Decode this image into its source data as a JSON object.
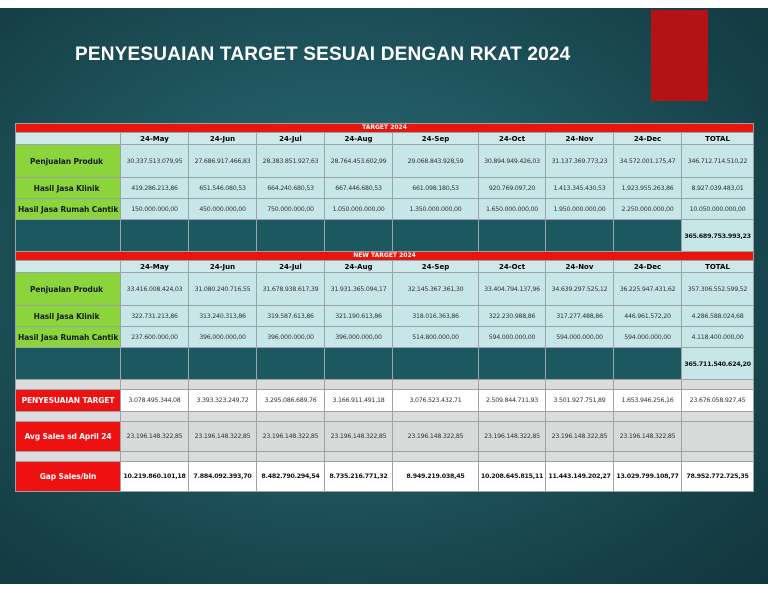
{
  "slide": {
    "title": "PENYESUAIAN TARGET SESUAI DENGAN RKAT 2024",
    "accent_color": "#b31315",
    "background_color": "#1f555e"
  },
  "table": {
    "columns": [
      "24-May",
      "24-Jun",
      "24-Jul",
      "24-Aug",
      "24-Sep",
      "24-Oct",
      "24-Nov",
      "24-Dec",
      "TOTAL"
    ],
    "target": {
      "banner": "TARGET 2024",
      "rows": [
        {
          "label": "Penjualan Produk",
          "values": [
            "30.337.513.079,95",
            "27.686.917.466,83",
            "28.383.851.927,63",
            "28.764.453.602,99",
            "29.068.843.928,59",
            "30.894.949.426,03",
            "31.137.369.773,23",
            "34.572.001.175,47",
            "346.712.714.510,22"
          ]
        },
        {
          "label": "Hasil Jasa Klinik",
          "values": [
            "419.286.213,86",
            "651.546.080,53",
            "664.240.680,53",
            "667.446.680,53",
            "661.098.180,53",
            "920.769.097,20",
            "1.413.345.430,53",
            "1.923.955.263,86",
            "8.927.039.483,01"
          ]
        },
        {
          "label": "Hasil Jasa Rumah Cantik",
          "values": [
            "150.000.000,00",
            "450.000.000,00",
            "750.000.000,00",
            "1.050.000.000,00",
            "1.350.000.000,00",
            "1.650.000.000,00",
            "1.950.000.000,00",
            "2.250.000.000,00",
            "10.050.000.000,00"
          ]
        }
      ],
      "grand_total": "365.689.753.993,23"
    },
    "new_target": {
      "banner": "NEW TARGET 2024",
      "rows": [
        {
          "label": "Penjualan Produk",
          "values": [
            "33.416.008.424,03",
            "31.080.240.716,55",
            "31.678.938.617,39",
            "31.931.365.094,17",
            "32.145.367.361,30",
            "33.404.794.137,96",
            "34.639.297.525,12",
            "36.225.947.431,62",
            "357.306.552.599,52"
          ]
        },
        {
          "label": "Hasil Jasa Klinik",
          "values": [
            "322.731.213,86",
            "313.240.313,86",
            "319.587.613,86",
            "321.190.613,86",
            "318.016.363,86",
            "322.230.988,86",
            "317.277.488,86",
            "446.961.572,20",
            "4.286.588.024,68"
          ]
        },
        {
          "label": "Hasil Jasa Rumah Cantik",
          "values": [
            "237.600.000,00",
            "396.000.000,00",
            "396.000.000,00",
            "396.000.000,00",
            "514.800.000,00",
            "594.000.000,00",
            "594.000.000,00",
            "594.000.000,00",
            "4.118.400.000,00"
          ]
        }
      ],
      "grand_total": "365.711.540.624,20"
    },
    "summary": {
      "penyesuaian": {
        "label": "PENYESUAIAN TARGET",
        "values": [
          "3.078.495.344,08",
          "3.393.323.249,72",
          "3.295.086.689,76",
          "3.166.911.491,18",
          "3.076.523.432,71",
          "2.509.844.711,93",
          "3.501.927.751,89",
          "1.653.946.256,16",
          "23.676.058.927,45"
        ]
      },
      "avg_sales": {
        "label": "Avg Sales sd April 24",
        "values": [
          "23.196.148.322,85",
          "23.196.148.322,85",
          "23.196.148.322,85",
          "23.196.148.322,85",
          "23.196.148.322,85",
          "23.196.148.322,85",
          "23.196.148.322,85",
          "23.196.148.322,85",
          ""
        ]
      },
      "gap_sales": {
        "label": "Gap Sales/bln",
        "values": [
          "10.219.860.101,18",
          "7.884.092.393,70",
          "8.482.790.294,54",
          "8.735.216.771,32",
          "8.949.219.038,45",
          "10.208.645.815,11",
          "11.443.149.202,27",
          "13.029.799.108,77",
          "78.952.772.725,35"
        ]
      }
    }
  }
}
